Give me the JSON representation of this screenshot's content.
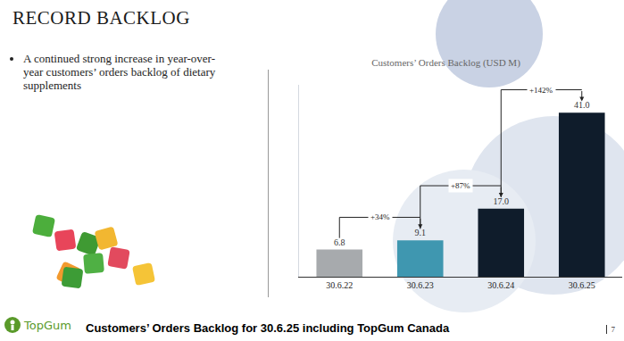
{
  "header": {
    "title": "RECORD BACKLOG",
    "bullets": [
      "A continued strong increase in year-over-year customers’ orders backlog of dietary supplements"
    ]
  },
  "chart_data": {
    "type": "bar",
    "title": "Customers’ Orders Backlog (USD M)",
    "categories": [
      "30.6.22",
      "30.6.23",
      "30.6.24",
      "30.6.25"
    ],
    "values": [
      6.8,
      9.1,
      17.0,
      41.0
    ],
    "value_labels": [
      "6.8",
      "9.1",
      "17.0",
      "41.0"
    ],
    "colors": [
      "#a7aaad",
      "#3f97b0",
      "#0f1c2b",
      "#0f1c2b"
    ],
    "ylim": [
      0,
      48
    ],
    "grid": false,
    "data_labels": true,
    "tick_labels": "x",
    "annotations": [
      {
        "from": "30.6.22",
        "to": "30.6.23",
        "text": "+34%"
      },
      {
        "from": "30.6.23",
        "to": "30.6.24",
        "text": "+87%"
      },
      {
        "from": "30.6.24",
        "to": "30.6.25",
        "text": "+142%"
      }
    ]
  },
  "footer": {
    "logo": "TopGum",
    "note": "Customers’ Orders Backlog for 30.6.25 including TopGum Canada",
    "page": "7"
  }
}
